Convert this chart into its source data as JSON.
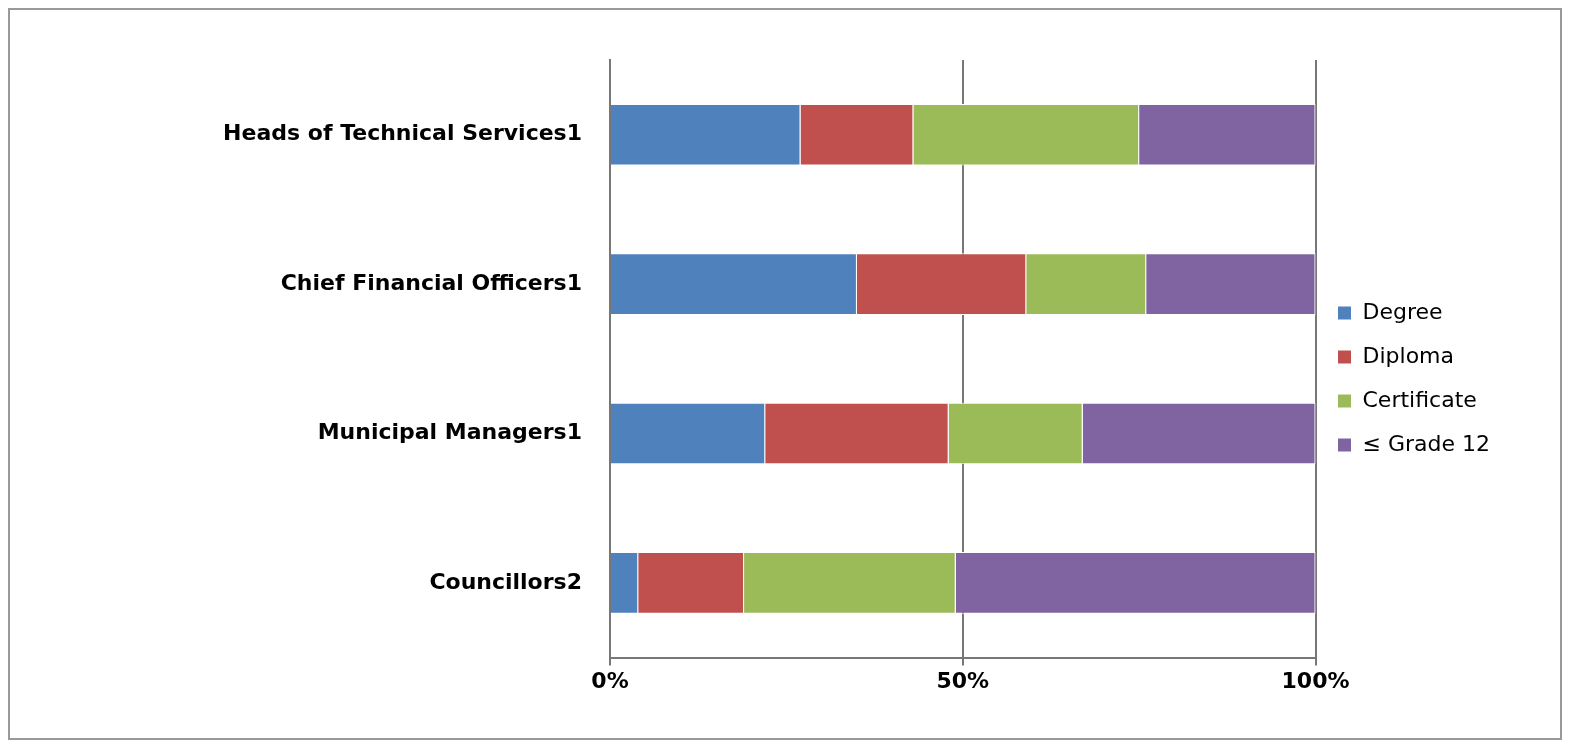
{
  "chart_data": {
    "type": "bar",
    "orientation": "horizontal",
    "stacked": true,
    "categories": [
      "Heads of Technical Services1",
      "Chief Financial Officers1",
      "Municipal Managers1",
      "Councillors2"
    ],
    "series": [
      {
        "name": "Degree",
        "color": "#4f81bd",
        "values": [
          27,
          35,
          22,
          4
        ]
      },
      {
        "name": "Diploma",
        "color": "#c0504d",
        "values": [
          16,
          24,
          26,
          15
        ]
      },
      {
        "name": "Certificate",
        "color": "#9bbb59",
        "values": [
          32,
          17,
          19,
          30
        ]
      },
      {
        "name": "≤ Grade 12",
        "color": "#8064a2",
        "values": [
          25,
          24,
          33,
          51
        ]
      }
    ],
    "xlim": [
      0,
      100
    ],
    "xticks": [
      {
        "value": 0,
        "label": "0%"
      },
      {
        "value": 50,
        "label": "50%"
      },
      {
        "value": 100,
        "label": "100%"
      }
    ],
    "grid": "x",
    "legend": "right"
  }
}
